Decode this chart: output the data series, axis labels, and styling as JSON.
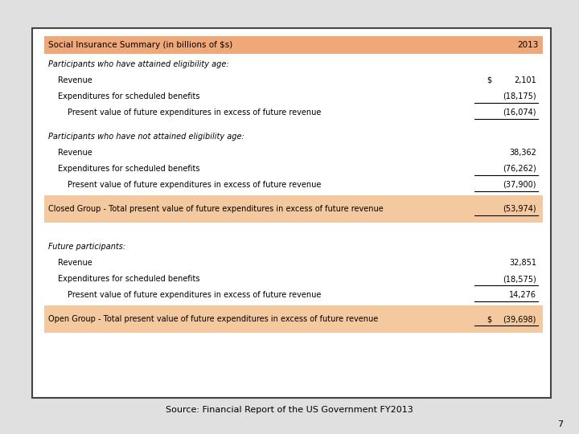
{
  "title": "Social Insurance Summary (in billions of $s)",
  "year_header": "2013",
  "outer_bg": "#e0e0e0",
  "inner_bg": "#ffffff",
  "header_bg": "#f0a878",
  "highlight_bg": "#f5c9a0",
  "source_text": "Source: Financial Report of the US Government FY2013",
  "page_num": "7",
  "rows": [
    {
      "label": "Participants who have attained eligibility age:",
      "value": "",
      "indent": 0,
      "italic": true,
      "highlight": false,
      "dollar_sign": false,
      "underline": false,
      "spacer": false
    },
    {
      "label": "Revenue",
      "value": "2,101",
      "indent": 1,
      "italic": false,
      "highlight": false,
      "dollar_sign": true,
      "underline": false,
      "spacer": false
    },
    {
      "label": "Expenditures for scheduled benefits",
      "value": "(18,175)",
      "indent": 1,
      "italic": false,
      "highlight": false,
      "dollar_sign": false,
      "underline": true,
      "spacer": false
    },
    {
      "label": "Present value of future expenditures in excess of future revenue",
      "value": "(16,074)",
      "indent": 2,
      "italic": false,
      "highlight": false,
      "dollar_sign": false,
      "underline": true,
      "spacer": false
    },
    {
      "label": "",
      "value": "",
      "indent": 0,
      "italic": false,
      "highlight": false,
      "dollar_sign": false,
      "underline": false,
      "spacer": true
    },
    {
      "label": "Participants who have not attained eligibility age:",
      "value": "",
      "indent": 0,
      "italic": true,
      "highlight": false,
      "dollar_sign": false,
      "underline": false,
      "spacer": false
    },
    {
      "label": "Revenue",
      "value": "38,362",
      "indent": 1,
      "italic": false,
      "highlight": false,
      "dollar_sign": false,
      "underline": false,
      "spacer": false
    },
    {
      "label": "Expenditures for scheduled benefits",
      "value": "(76,262)",
      "indent": 1,
      "italic": false,
      "highlight": false,
      "dollar_sign": false,
      "underline": true,
      "spacer": false
    },
    {
      "label": "Present value of future expenditures in excess of future revenue",
      "value": "(37,900)",
      "indent": 2,
      "italic": false,
      "highlight": false,
      "dollar_sign": false,
      "underline": true,
      "spacer": false
    },
    {
      "label": "",
      "value": "",
      "indent": 0,
      "italic": false,
      "highlight": false,
      "dollar_sign": false,
      "underline": false,
      "spacer": true
    },
    {
      "label": "Closed Group - Total present value of future expenditures in excess of future revenue",
      "value": "(53,974)",
      "indent": 0,
      "italic": false,
      "highlight": true,
      "dollar_sign": false,
      "underline": true,
      "spacer": false
    },
    {
      "label": "",
      "value": "",
      "indent": 0,
      "italic": false,
      "highlight": false,
      "dollar_sign": false,
      "underline": false,
      "spacer": true
    },
    {
      "label": "Future participants:",
      "value": "",
      "indent": 0,
      "italic": true,
      "highlight": false,
      "dollar_sign": false,
      "underline": false,
      "spacer": false
    },
    {
      "label": "Revenue",
      "value": "32,851",
      "indent": 1,
      "italic": false,
      "highlight": false,
      "dollar_sign": false,
      "underline": false,
      "spacer": false
    },
    {
      "label": "Expenditures for scheduled benefits",
      "value": "(18,575)",
      "indent": 1,
      "italic": false,
      "highlight": false,
      "dollar_sign": false,
      "underline": true,
      "spacer": false
    },
    {
      "label": "Present value of future expenditures in excess of future revenue",
      "value": "14,276",
      "indent": 2,
      "italic": false,
      "highlight": false,
      "dollar_sign": false,
      "underline": true,
      "spacer": false
    },
    {
      "label": "",
      "value": "",
      "indent": 0,
      "italic": false,
      "highlight": false,
      "dollar_sign": false,
      "underline": false,
      "spacer": true
    },
    {
      "label": "Open Group - Total present value of future expenditures in excess of future revenue",
      "value": "(39,698)",
      "indent": 0,
      "italic": false,
      "highlight": true,
      "dollar_sign": true,
      "underline": true,
      "spacer": false
    }
  ]
}
